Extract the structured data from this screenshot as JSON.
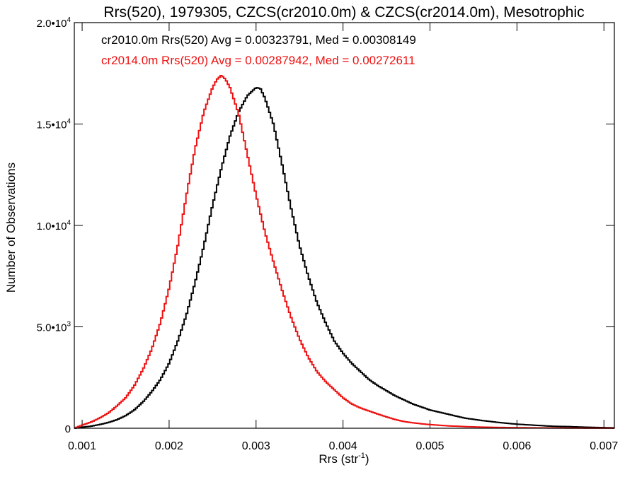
{
  "chart_data": {
    "type": "line",
    "title": "Rrs(520), 1979305, CZCS(cr2010.0m) & CZCS(cr2014.0m), Mesotrophic",
    "xlabel": "Rrs (str",
    "xlabel_sup": "-1",
    "xlabel_suffix": ")",
    "ylabel": "Number of Observations",
    "xlim": [
      0.00091,
      0.00712
    ],
    "ylim": [
      0,
      20000
    ],
    "xticks": [
      0.001,
      0.002,
      0.003,
      0.004,
      0.005,
      0.006,
      0.007
    ],
    "xtick_labels": [
      "0.001",
      "0.002",
      "0.003",
      "0.004",
      "0.005",
      "0.006",
      "0.007"
    ],
    "yticks": [
      0,
      5000,
      10000,
      15000,
      20000
    ],
    "ytick_labels": [
      {
        "mant": "0",
        "exp": ""
      },
      {
        "mant": "5.0•10",
        "exp": "3"
      },
      {
        "mant": "1.0•10",
        "exp": "4"
      },
      {
        "mant": "1.5•10",
        "exp": "4"
      },
      {
        "mant": "2.0•10",
        "exp": "4"
      }
    ],
    "grid": false,
    "legend_position": "top-left",
    "series": [
      {
        "label": "cr2010.0m Rrs(520) Avg = 0.00323791, Med = 0.00308149",
        "color": "#000000",
        "x": [
          0.00091,
          0.001,
          0.0011,
          0.0012,
          0.0013,
          0.0014,
          0.0015,
          0.0016,
          0.0017,
          0.0018,
          0.0019,
          0.002,
          0.0021,
          0.0022,
          0.0023,
          0.0024,
          0.0025,
          0.0026,
          0.0027,
          0.0028,
          0.0029,
          0.003,
          0.00305,
          0.0031,
          0.0032,
          0.0033,
          0.0034,
          0.0035,
          0.0036,
          0.0037,
          0.0038,
          0.0039,
          0.004,
          0.0041,
          0.0042,
          0.0043,
          0.0044,
          0.0045,
          0.0046,
          0.0047,
          0.0048,
          0.0049,
          0.005,
          0.0052,
          0.0054,
          0.0056,
          0.0058,
          0.006,
          0.0062,
          0.0064,
          0.0066,
          0.0068,
          0.007,
          0.00712
        ],
        "y": [
          0,
          50,
          100,
          180,
          280,
          420,
          620,
          900,
          1300,
          1800,
          2400,
          3200,
          4300,
          5600,
          7200,
          9000,
          11000,
          12800,
          14400,
          15600,
          16400,
          16800,
          16750,
          16300,
          15000,
          13000,
          10900,
          9000,
          7500,
          6200,
          5200,
          4300,
          3700,
          3200,
          2800,
          2400,
          2100,
          1850,
          1600,
          1400,
          1200,
          1050,
          900,
          700,
          500,
          380,
          280,
          200,
          150,
          100,
          80,
          50,
          30,
          20
        ]
      },
      {
        "label": "cr2014.0m Rrs(520) Avg = 0.00287942, Med = 0.00272611",
        "color": "#ee1111",
        "x": [
          0.00091,
          0.001,
          0.0011,
          0.0012,
          0.0013,
          0.0014,
          0.0015,
          0.0016,
          0.0017,
          0.0018,
          0.0019,
          0.002,
          0.0021,
          0.0022,
          0.0023,
          0.0024,
          0.0025,
          0.00255,
          0.0026,
          0.00265,
          0.0027,
          0.0028,
          0.0029,
          0.003,
          0.0031,
          0.0032,
          0.0033,
          0.0034,
          0.0035,
          0.0036,
          0.0037,
          0.0038,
          0.0039,
          0.004,
          0.0041,
          0.0042,
          0.0043,
          0.0044,
          0.0045,
          0.0046,
          0.0047,
          0.0048,
          0.0049,
          0.005,
          0.0052,
          0.0054,
          0.0056,
          0.0058,
          0.006,
          0.0062,
          0.0064,
          0.0066,
          0.0068,
          0.007,
          0.00712
        ],
        "y": [
          0,
          150,
          300,
          500,
          750,
          1100,
          1500,
          2100,
          2900,
          3900,
          5200,
          6900,
          9000,
          11500,
          13800,
          15600,
          16800,
          17200,
          17400,
          17200,
          16800,
          15500,
          13500,
          11500,
          9700,
          8200,
          6800,
          5500,
          4400,
          3500,
          2800,
          2300,
          1900,
          1500,
          1200,
          1000,
          850,
          700,
          560,
          430,
          330,
          270,
          220,
          180,
          120,
          80,
          55,
          40,
          28,
          20,
          14,
          10,
          6,
          4,
          2
        ]
      }
    ]
  }
}
